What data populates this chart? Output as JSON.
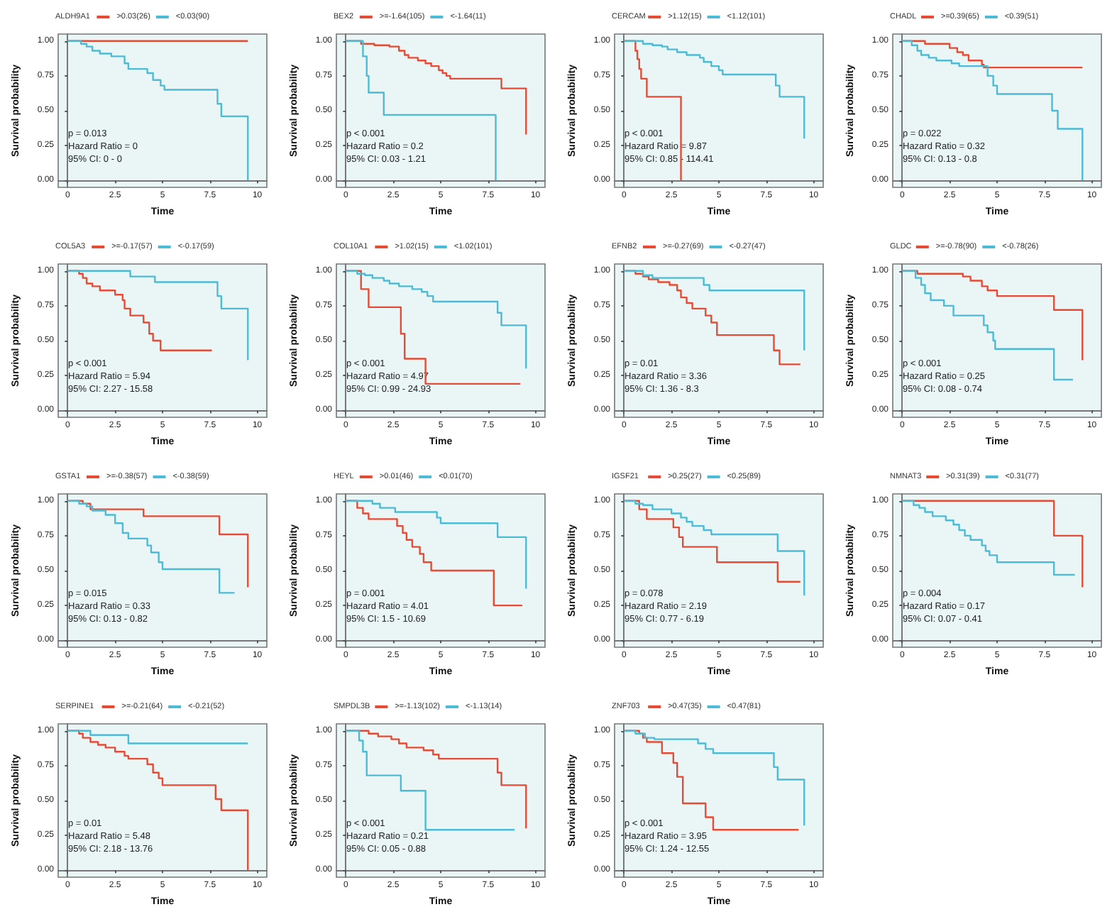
{
  "chart_data": [
    {
      "type": "step",
      "legend_title": "ALDH9A1",
      "xlabel": "Time",
      "ylabel": "Survival probability",
      "legend": "top",
      "marker": "none",
      "annotations": [
        "p = 0.013",
        "Hazard Ratio = 0",
        "95% CI: 0 - 0"
      ],
      "xlim": [
        -0.5,
        10.5
      ],
      "ylim": [
        -0.05,
        1.05
      ],
      "xticks": [
        0,
        2.5,
        5,
        7.5,
        10
      ],
      "yticks": [
        {
          "value": 0,
          "label": "0.00"
        },
        {
          "value": 0.25,
          "label": "0.25"
        },
        {
          "value": 0.5,
          "label": "0.50"
        },
        {
          "value": 0.75,
          "label": "0.75"
        },
        {
          "value": 1,
          "label": "1.00"
        }
      ],
      "series": [
        {
          "name": ">0.03(26)",
          "color": "#e64b35",
          "x": [
            0,
            9.5
          ],
          "values": [
            1,
            1
          ]
        },
        {
          "name": "<0.03(90)",
          "color": "#4dbbd5",
          "x": [
            0,
            0.7,
            1.0,
            1.3,
            1.7,
            2.3,
            3.0,
            3.2,
            4.2,
            4.5,
            4.9,
            5.1,
            7.9,
            8.1,
            9.5
          ],
          "values": [
            1,
            0.98,
            0.96,
            0.93,
            0.91,
            0.89,
            0.84,
            0.8,
            0.77,
            0.72,
            0.68,
            0.65,
            0.55,
            0.46,
            0
          ]
        }
      ]
    },
    {
      "type": "step",
      "legend_title": "BEX2",
      "xlabel": "Time",
      "ylabel": "Survival probability",
      "legend": "top",
      "marker": "none",
      "annotations": [
        "p < 0.001",
        "Hazard Ratio = 0.2",
        "95% CI: 0.03 - 1.21"
      ],
      "xlim": [
        -0.5,
        10.5
      ],
      "ylim": [
        -0.05,
        1.05
      ],
      "xticks": [
        0,
        2.5,
        5,
        7.5,
        10
      ],
      "yticks": [
        {
          "value": 0,
          "label": "0.00"
        },
        {
          "value": 0.25,
          "label": "0.25"
        },
        {
          "value": 0.5,
          "label": "0.50"
        },
        {
          "value": 0.75,
          "label": "0.75"
        },
        {
          "value": 1,
          "label": "1.00"
        }
      ],
      "series": [
        {
          "name": ">=-1.64(105)",
          "color": "#e64b35",
          "x": [
            0,
            0.8,
            1.5,
            2.3,
            2.8,
            3.1,
            3.3,
            3.8,
            4.2,
            4.5,
            4.9,
            5.1,
            5.3,
            5.5,
            8.2,
            9.5
          ],
          "values": [
            1,
            0.98,
            0.97,
            0.96,
            0.93,
            0.9,
            0.88,
            0.86,
            0.84,
            0.82,
            0.79,
            0.77,
            0.75,
            0.73,
            0.66,
            0.33
          ]
        },
        {
          "name": "<-1.64(11)",
          "color": "#4dbbd5",
          "x": [
            0,
            0.9,
            1.1,
            1.2,
            2.0,
            7.9
          ],
          "values": [
            1,
            0.89,
            0.75,
            0.63,
            0.47,
            0
          ]
        }
      ]
    },
    {
      "type": "step",
      "legend_title": "CERCAM",
      "xlabel": "Time",
      "ylabel": "Survival probability",
      "legend": "top",
      "marker": "none",
      "annotations": [
        "p < 0.001",
        "Hazard Ratio = 9.87",
        "95% CI: 0.85 - 114.41"
      ],
      "xlim": [
        -0.5,
        10.5
      ],
      "ylim": [
        -0.05,
        1.05
      ],
      "xticks": [
        0,
        2.5,
        5,
        7.5,
        10
      ],
      "yticks": [
        {
          "value": 0,
          "label": "0.00"
        },
        {
          "value": 0.25,
          "label": "0.25"
        },
        {
          "value": 0.5,
          "label": "0.50"
        },
        {
          "value": 0.75,
          "label": "0.75"
        },
        {
          "value": 1,
          "label": "1.00"
        }
      ],
      "series": [
        {
          "name": ">1.12(15)",
          "color": "#e64b35",
          "x": [
            0,
            0.6,
            0.7,
            0.8,
            0.9,
            1.2,
            3.0
          ],
          "values": [
            1,
            0.93,
            0.87,
            0.8,
            0.73,
            0.6,
            0
          ]
        },
        {
          "name": "<1.12(101)",
          "color": "#4dbbd5",
          "x": [
            0,
            1,
            1.5,
            2,
            2.3,
            2.8,
            3.3,
            4,
            4.2,
            4.6,
            5,
            5.2,
            8,
            8.2,
            9.5
          ],
          "values": [
            1,
            0.98,
            0.97,
            0.96,
            0.94,
            0.92,
            0.9,
            0.88,
            0.85,
            0.82,
            0.79,
            0.76,
            0.68,
            0.6,
            0.3
          ]
        }
      ]
    },
    {
      "type": "step",
      "legend_title": "CHADL",
      "xlabel": "Time",
      "ylabel": "Survival probability",
      "legend": "top",
      "marker": "none",
      "annotations": [
        "p = 0.022",
        "Hazard Ratio = 0.32",
        "95% CI: 0.13 - 0.8"
      ],
      "xlim": [
        -0.5,
        10.5
      ],
      "ylim": [
        -0.05,
        1.05
      ],
      "xticks": [
        0,
        2.5,
        5,
        7.5,
        10
      ],
      "yticks": [
        {
          "value": 0,
          "label": "0.00"
        },
        {
          "value": 0.25,
          "label": "0.25"
        },
        {
          "value": 0.5,
          "label": "0.50"
        },
        {
          "value": 0.75,
          "label": "0.75"
        },
        {
          "value": 1,
          "label": "1.00"
        }
      ],
      "series": [
        {
          "name": ">=0.39(65)",
          "color": "#e64b35",
          "x": [
            0,
            1.2,
            2.5,
            2.9,
            3.2,
            3.5,
            4.2,
            4.3,
            9.5
          ],
          "values": [
            1,
            0.98,
            0.95,
            0.92,
            0.9,
            0.86,
            0.83,
            0.81,
            0.81
          ]
        },
        {
          "name": "<0.39(51)",
          "color": "#4dbbd5",
          "x": [
            0,
            0.5,
            0.8,
            1,
            1.4,
            1.8,
            2.6,
            3.0,
            4.5,
            4.8,
            5,
            7.9,
            8.2,
            9.5
          ],
          "values": [
            1,
            0.97,
            0.93,
            0.9,
            0.88,
            0.86,
            0.84,
            0.82,
            0.75,
            0.68,
            0.62,
            0.5,
            0.37,
            0
          ]
        }
      ]
    },
    {
      "type": "step",
      "legend_title": "COL5A3",
      "xlabel": "Time",
      "ylabel": "Survival probability",
      "legend": "top",
      "marker": "none",
      "annotations": [
        "p < 0.001",
        "Hazard Ratio = 5.94",
        "95% CI: 2.27 - 15.58"
      ],
      "xlim": [
        -0.5,
        10.5
      ],
      "ylim": [
        -0.05,
        1.05
      ],
      "xticks": [
        0,
        2.5,
        5,
        7.5,
        10
      ],
      "yticks": [
        {
          "value": 0,
          "label": "0.00"
        },
        {
          "value": 0.25,
          "label": "0.25"
        },
        {
          "value": 0.5,
          "label": "0.50"
        },
        {
          "value": 0.75,
          "label": "0.75"
        },
        {
          "value": 1,
          "label": "1.00"
        }
      ],
      "series": [
        {
          "name": ">=-0.17(57)",
          "color": "#e64b35",
          "x": [
            0,
            0.6,
            0.8,
            1.0,
            1.3,
            1.7,
            2.5,
            2.9,
            3,
            3.3,
            4,
            4.3,
            4.5,
            4.9,
            7.6
          ],
          "values": [
            1,
            0.98,
            0.95,
            0.91,
            0.89,
            0.86,
            0.83,
            0.79,
            0.73,
            0.68,
            0.63,
            0.55,
            0.5,
            0.43,
            0.43
          ]
        },
        {
          "name": "<-0.17(59)",
          "color": "#4dbbd5",
          "x": [
            0,
            3.3,
            4.6,
            7.9,
            8.1,
            9.5
          ],
          "values": [
            1,
            0.96,
            0.92,
            0.82,
            0.73,
            0.36
          ]
        }
      ]
    },
    {
      "type": "step",
      "legend_title": "COL10A1",
      "xlabel": "Time",
      "ylabel": "Survival probability",
      "legend": "top",
      "marker": "none",
      "annotations": [
        "p < 0.001",
        "Hazard Ratio = 4.97",
        "95% CI: 0.99 - 24.93"
      ],
      "xlim": [
        -0.5,
        10.5
      ],
      "ylim": [
        -0.05,
        1.05
      ],
      "xticks": [
        0,
        2.5,
        5,
        7.5,
        10
      ],
      "yticks": [
        {
          "value": 0,
          "label": "0.00"
        },
        {
          "value": 0.25,
          "label": "0.25"
        },
        {
          "value": 0.5,
          "label": "0.50"
        },
        {
          "value": 0.75,
          "label": "0.75"
        },
        {
          "value": 1,
          "label": "1.00"
        }
      ],
      "series": [
        {
          "name": ">1.02(15)",
          "color": "#e64b35",
          "x": [
            0,
            0.8,
            1.2,
            2.9,
            3.1,
            4.2,
            9.2
          ],
          "values": [
            1,
            0.87,
            0.74,
            0.55,
            0.37,
            0.19,
            0.19
          ]
        },
        {
          "name": "<1.02(101)",
          "color": "#4dbbd5",
          "x": [
            0,
            0.6,
            1,
            1.4,
            2,
            2.3,
            2.8,
            3.5,
            4,
            4.3,
            4.6,
            8,
            8.2,
            9.5
          ],
          "values": [
            1,
            0.98,
            0.97,
            0.95,
            0.93,
            0.91,
            0.89,
            0.87,
            0.85,
            0.82,
            0.78,
            0.7,
            0.61,
            0.3
          ]
        }
      ]
    },
    {
      "type": "step",
      "legend_title": "EFNB2",
      "xlabel": "Time",
      "ylabel": "Survival probability",
      "legend": "top",
      "marker": "none",
      "annotations": [
        "p = 0.01",
        "Hazard Ratio = 3.36",
        "95% CI: 1.36 - 8.3"
      ],
      "xlim": [
        -0.5,
        10.5
      ],
      "ylim": [
        -0.05,
        1.05
      ],
      "xticks": [
        0,
        2.5,
        5,
        7.5,
        10
      ],
      "yticks": [
        {
          "value": 0,
          "label": "0.00"
        },
        {
          "value": 0.25,
          "label": "0.25"
        },
        {
          "value": 0.5,
          "label": "0.50"
        },
        {
          "value": 0.75,
          "label": "0.75"
        },
        {
          "value": 1,
          "label": "1.00"
        }
      ],
      "series": [
        {
          "name": ">=-0.27(69)",
          "color": "#e64b35",
          "x": [
            0,
            0.6,
            1,
            1.3,
            1.8,
            2.4,
            2.8,
            3,
            3.3,
            3.6,
            4.3,
            4.6,
            4.9,
            7.9,
            8.2,
            9.3
          ],
          "values": [
            1,
            0.98,
            0.96,
            0.94,
            0.92,
            0.9,
            0.86,
            0.81,
            0.77,
            0.73,
            0.68,
            0.63,
            0.54,
            0.43,
            0.33,
            0.33
          ]
        },
        {
          "name": "<-0.27(47)",
          "color": "#4dbbd5",
          "x": [
            0,
            1,
            1.5,
            4.2,
            4.5,
            9.5
          ],
          "values": [
            1,
            0.97,
            0.95,
            0.9,
            0.86,
            0.43
          ]
        }
      ]
    },
    {
      "type": "step",
      "legend_title": "GLDC",
      "xlabel": "Time",
      "ylabel": "Survival probability",
      "legend": "top",
      "marker": "none",
      "annotations": [
        "p < 0.001",
        "Hazard Ratio = 0.25",
        "95% CI: 0.08 - 0.74"
      ],
      "xlim": [
        -0.5,
        10.5
      ],
      "ylim": [
        -0.05,
        1.05
      ],
      "xticks": [
        0,
        2.5,
        5,
        7.5,
        10
      ],
      "yticks": [
        {
          "value": 0,
          "label": "0.00"
        },
        {
          "value": 0.25,
          "label": "0.25"
        },
        {
          "value": 0.5,
          "label": "0.50"
        },
        {
          "value": 0.75,
          "label": "0.75"
        },
        {
          "value": 1,
          "label": "1.00"
        }
      ],
      "series": [
        {
          "name": ">=-0.78(90)",
          "color": "#e64b35",
          "x": [
            0,
            0.8,
            3.2,
            3.6,
            4.2,
            4.5,
            5,
            8,
            9.5
          ],
          "values": [
            1,
            0.98,
            0.96,
            0.93,
            0.89,
            0.86,
            0.82,
            0.72,
            0.36
          ]
        },
        {
          "name": "<-0.78(26)",
          "color": "#4dbbd5",
          "x": [
            0,
            0.7,
            1,
            1.2,
            1.5,
            2.2,
            2.7,
            4.3,
            4.5,
            4.8,
            4.9,
            8,
            9
          ],
          "values": [
            1,
            0.95,
            0.9,
            0.84,
            0.79,
            0.75,
            0.68,
            0.61,
            0.56,
            0.5,
            0.44,
            0.22,
            0.22
          ]
        }
      ]
    },
    {
      "type": "step",
      "legend_title": "GSTA1",
      "xlabel": "Time",
      "ylabel": "Survival probability",
      "legend": "top",
      "marker": "none",
      "annotations": [
        "p = 0.015",
        "Hazard Ratio = 0.33",
        "95% CI: 0.13 - 0.82"
      ],
      "xlim": [
        -0.5,
        10.5
      ],
      "ylim": [
        -0.05,
        1.05
      ],
      "xticks": [
        0,
        2.5,
        5,
        7.5,
        10
      ],
      "yticks": [
        {
          "value": 0,
          "label": "0.00"
        },
        {
          "value": 0.25,
          "label": "0.25"
        },
        {
          "value": 0.5,
          "label": "0.50"
        },
        {
          "value": 0.75,
          "label": "0.75"
        },
        {
          "value": 1,
          "label": "1.00"
        }
      ],
      "series": [
        {
          "name": ">=-0.38(57)",
          "color": "#e64b35",
          "x": [
            0,
            0.8,
            1.2,
            4,
            8,
            9.5
          ],
          "values": [
            1,
            0.98,
            0.94,
            0.89,
            0.76,
            0.38
          ]
        },
        {
          "name": "<-0.38(59)",
          "color": "#4dbbd5",
          "x": [
            0,
            0.6,
            1,
            1.3,
            2,
            2.5,
            2.9,
            3.2,
            4.2,
            4.4,
            4.8,
            5,
            8,
            8.8
          ],
          "values": [
            1,
            0.98,
            0.96,
            0.93,
            0.9,
            0.84,
            0.77,
            0.73,
            0.68,
            0.63,
            0.56,
            0.51,
            0.34,
            0.34
          ]
        }
      ]
    },
    {
      "type": "step",
      "legend_title": "HEYL",
      "xlabel": "Time",
      "ylabel": "Survival probability",
      "legend": "top",
      "marker": "none",
      "annotations": [
        "p = 0.001",
        "Hazard Ratio = 4.01",
        "95% CI: 1.5 - 10.69"
      ],
      "xlim": [
        -0.5,
        10.5
      ],
      "ylim": [
        -0.05,
        1.05
      ],
      "xticks": [
        0,
        2.5,
        5,
        7.5,
        10
      ],
      "yticks": [
        {
          "value": 0,
          "label": "0.00"
        },
        {
          "value": 0.25,
          "label": "0.25"
        },
        {
          "value": 0.5,
          "label": "0.50"
        },
        {
          "value": 0.75,
          "label": "0.75"
        },
        {
          "value": 1,
          "label": "1.00"
        }
      ],
      "series": [
        {
          "name": ">0.01(46)",
          "color": "#e64b35",
          "x": [
            0,
            0.6,
            0.9,
            1.2,
            2.7,
            3,
            3.2,
            3.5,
            3.9,
            4.1,
            4.5,
            7.8,
            9.3
          ],
          "values": [
            1,
            0.95,
            0.91,
            0.87,
            0.82,
            0.77,
            0.72,
            0.67,
            0.62,
            0.56,
            0.5,
            0.25,
            0.25
          ]
        },
        {
          "name": "<0.01(70)",
          "color": "#4dbbd5",
          "x": [
            0,
            1.4,
            1.8,
            2.6,
            4.8,
            5,
            8,
            9.5
          ],
          "values": [
            1,
            0.98,
            0.95,
            0.92,
            0.88,
            0.84,
            0.74,
            0.37
          ]
        }
      ]
    },
    {
      "type": "step",
      "legend_title": "IGSF21",
      "xlabel": "Time",
      "ylabel": "Survival probability",
      "legend": "top",
      "marker": "none",
      "annotations": [
        "p = 0.078",
        "Hazard Ratio = 2.19",
        "95% CI: 0.77 - 6.19"
      ],
      "xlim": [
        -0.5,
        10.5
      ],
      "ylim": [
        -0.05,
        1.05
      ],
      "xticks": [
        0,
        2.5,
        5,
        7.5,
        10
      ],
      "yticks": [
        {
          "value": 0,
          "label": "0.00"
        },
        {
          "value": 0.25,
          "label": "0.25"
        },
        {
          "value": 0.5,
          "label": "0.50"
        },
        {
          "value": 0.75,
          "label": "0.75"
        },
        {
          "value": 1,
          "label": "1.00"
        }
      ],
      "series": [
        {
          "name": ">0.25(27)",
          "color": "#e64b35",
          "x": [
            0,
            0.8,
            1.2,
            2.6,
            2.9,
            3.1,
            4.9,
            8.1,
            9.3
          ],
          "values": [
            1,
            0.94,
            0.87,
            0.81,
            0.74,
            0.67,
            0.56,
            0.42,
            0.42
          ]
        },
        {
          "name": "<0.25(89)",
          "color": "#4dbbd5",
          "x": [
            0,
            0.6,
            1,
            1.5,
            2.5,
            3,
            3.3,
            3.6,
            4.2,
            4.6,
            8.1,
            9.5
          ],
          "values": [
            1,
            0.98,
            0.97,
            0.94,
            0.91,
            0.88,
            0.85,
            0.82,
            0.79,
            0.76,
            0.64,
            0.32
          ]
        }
      ]
    },
    {
      "type": "step",
      "legend_title": "NMNAT3",
      "xlabel": "Time",
      "ylabel": "Survival probability",
      "legend": "top",
      "marker": "none",
      "annotations": [
        "p = 0.004",
        "Hazard Ratio = 0.17",
        "95% CI: 0.07 - 0.41"
      ],
      "xlim": [
        -0.5,
        10.5
      ],
      "ylim": [
        -0.05,
        1.05
      ],
      "xticks": [
        0,
        2.5,
        5,
        7.5,
        10
      ],
      "yticks": [
        {
          "value": 0,
          "label": "0.00"
        },
        {
          "value": 0.25,
          "label": "0.25"
        },
        {
          "value": 0.5,
          "label": "0.50"
        },
        {
          "value": 0.75,
          "label": "0.75"
        },
        {
          "value": 1,
          "label": "1.00"
        }
      ],
      "series": [
        {
          "name": ">0.31(39)",
          "color": "#e64b35",
          "x": [
            0,
            8,
            9.5
          ],
          "values": [
            1,
            0.75,
            0.38
          ]
        },
        {
          "name": "<0.31(77)",
          "color": "#4dbbd5",
          "x": [
            0,
            0.6,
            0.9,
            1.2,
            1.6,
            2.3,
            2.7,
            3,
            3.3,
            3.6,
            4.2,
            4.4,
            4.6,
            5,
            8,
            9.1
          ],
          "values": [
            1,
            0.97,
            0.95,
            0.92,
            0.89,
            0.86,
            0.83,
            0.79,
            0.75,
            0.72,
            0.68,
            0.64,
            0.61,
            0.56,
            0.47,
            0.47
          ]
        }
      ]
    },
    {
      "type": "step",
      "legend_title": "SERPINE1",
      "xlabel": "Time",
      "ylabel": "Survival probability",
      "legend": "top",
      "marker": "none",
      "annotations": [
        "p = 0.01",
        "Hazard Ratio = 5.48",
        "95% CI: 2.18 - 13.76"
      ],
      "xlim": [
        -0.5,
        10.5
      ],
      "ylim": [
        -0.05,
        1.05
      ],
      "xticks": [
        0,
        2.5,
        5,
        7.5,
        10
      ],
      "yticks": [
        {
          "value": 0,
          "label": "0.00"
        },
        {
          "value": 0.25,
          "label": "0.25"
        },
        {
          "value": 0.5,
          "label": "0.50"
        },
        {
          "value": 0.75,
          "label": "0.75"
        },
        {
          "value": 1,
          "label": "1.00"
        }
      ],
      "series": [
        {
          "name": ">=-0.21(64)",
          "color": "#e64b35",
          "x": [
            0,
            0.6,
            0.8,
            1.2,
            1.6,
            2,
            2.5,
            3,
            3.2,
            4.2,
            4.5,
            4.8,
            5,
            7.8,
            8.1,
            9.5
          ],
          "values": [
            1,
            0.98,
            0.95,
            0.92,
            0.9,
            0.88,
            0.85,
            0.82,
            0.8,
            0.76,
            0.7,
            0.66,
            0.61,
            0.51,
            0.43,
            0
          ]
        },
        {
          "name": "<-0.21(52)",
          "color": "#4dbbd5",
          "x": [
            0,
            1.2,
            3.2,
            9.5
          ],
          "values": [
            1,
            0.97,
            0.91,
            0.91
          ]
        }
      ]
    },
    {
      "type": "step",
      "legend_title": "SMPDL3B",
      "xlabel": "Time",
      "ylabel": "Survival probability",
      "legend": "top",
      "marker": "none",
      "annotations": [
        "p < 0.001",
        "Hazard Ratio = 0.21",
        "95% CI: 0.05 - 0.88"
      ],
      "xlim": [
        -0.5,
        10.5
      ],
      "ylim": [
        -0.05,
        1.05
      ],
      "xticks": [
        0,
        2.5,
        5,
        7.5,
        10
      ],
      "yticks": [
        {
          "value": 0,
          "label": "0.00"
        },
        {
          "value": 0.25,
          "label": "0.25"
        },
        {
          "value": 0.5,
          "label": "0.50"
        },
        {
          "value": 0.75,
          "label": "0.75"
        },
        {
          "value": 1,
          "label": "1.00"
        }
      ],
      "series": [
        {
          "name": ">=-1.13(102)",
          "color": "#e64b35",
          "x": [
            0,
            1.2,
            1.7,
            2.4,
            2.8,
            3.2,
            4.1,
            4.6,
            4.9,
            8,
            8.2,
            9.5
          ],
          "values": [
            1,
            0.98,
            0.96,
            0.94,
            0.91,
            0.88,
            0.86,
            0.83,
            0.8,
            0.7,
            0.61,
            0.3
          ]
        },
        {
          "name": "<-1.13(14)",
          "color": "#4dbbd5",
          "x": [
            0,
            0.7,
            0.9,
            1.1,
            2.9,
            4.2,
            8.9
          ],
          "values": [
            1,
            0.93,
            0.85,
            0.68,
            0.57,
            0.29,
            0.29
          ]
        }
      ]
    },
    {
      "type": "step",
      "legend_title": "ZNF703",
      "xlabel": "Time",
      "ylabel": "Survival probability",
      "legend": "top",
      "marker": "none",
      "annotations": [
        "p < 0.001",
        "Hazard Ratio = 3.95",
        "95% CI: 1.24 - 12.55"
      ],
      "xlim": [
        -0.5,
        10.5
      ],
      "ylim": [
        -0.05,
        1.05
      ],
      "xticks": [
        0,
        2.5,
        5,
        7.5,
        10
      ],
      "yticks": [
        {
          "value": 0,
          "label": "0.00"
        },
        {
          "value": 0.25,
          "label": "0.25"
        },
        {
          "value": 0.5,
          "label": "0.50"
        },
        {
          "value": 0.75,
          "label": "0.75"
        },
        {
          "value": 1,
          "label": "1.00"
        }
      ],
      "series": [
        {
          "name": ">0.47(35)",
          "color": "#e64b35",
          "x": [
            0,
            0.8,
            1,
            1.2,
            2,
            2.6,
            2.8,
            3.1,
            4.3,
            4.7,
            9.2
          ],
          "values": [
            1,
            0.98,
            0.95,
            0.92,
            0.84,
            0.77,
            0.67,
            0.48,
            0.38,
            0.29,
            0.29
          ]
        },
        {
          "name": "<0.47(81)",
          "color": "#4dbbd5",
          "x": [
            0,
            0.6,
            1.1,
            1.6,
            3.9,
            4.3,
            4.7,
            7.9,
            8.1,
            9.5
          ],
          "values": [
            1,
            0.98,
            0.95,
            0.94,
            0.91,
            0.87,
            0.84,
            0.74,
            0.65,
            0.32
          ]
        }
      ]
    }
  ]
}
